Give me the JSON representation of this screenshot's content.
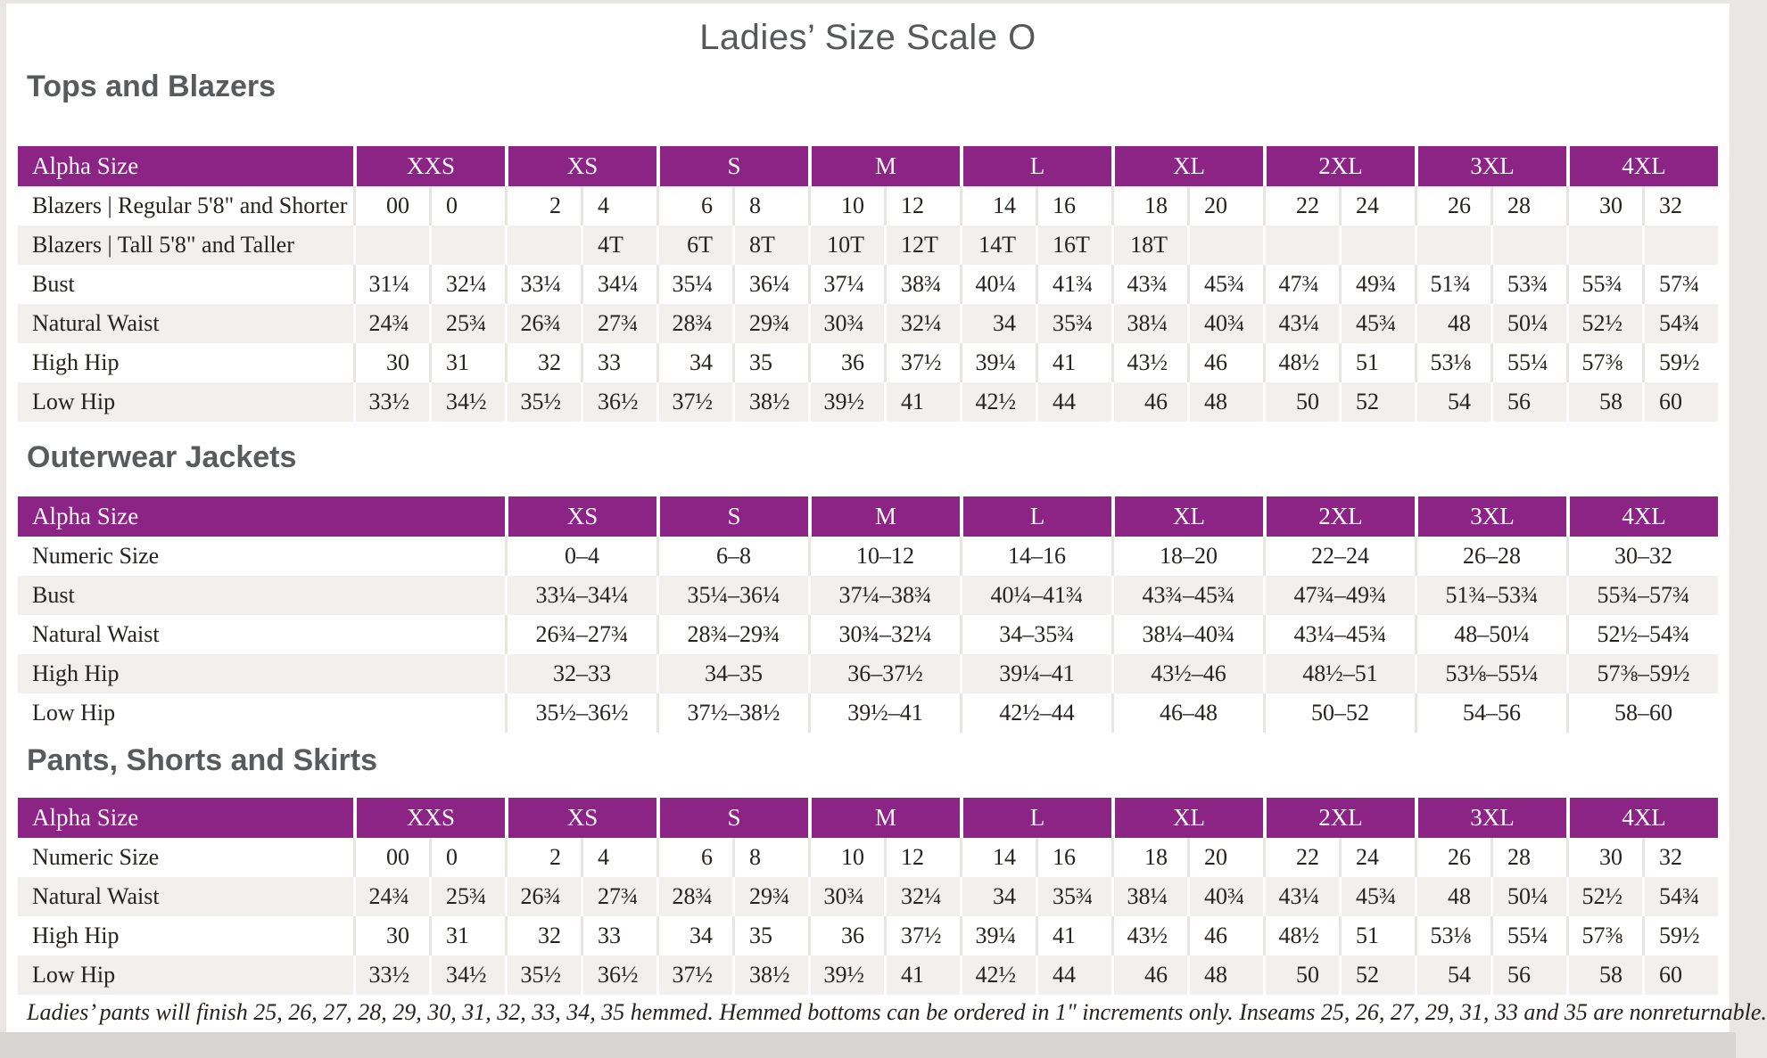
{
  "page": {
    "title": "Ladies’ Size Scale O"
  },
  "colors": {
    "header_purple": "#8c2486",
    "row_alt": "#f2f0ed",
    "heading_gray": "#595a5c",
    "text": "#262220"
  },
  "tables": [
    {
      "section_title": "Tops and Blazers",
      "layout": "paired",
      "header_label": "Alpha Size",
      "sizes": [
        "XXS",
        "XS",
        "S",
        "M",
        "L",
        "XL",
        "2XL",
        "3XL",
        "4XL"
      ],
      "rows": [
        {
          "label": "Blazers | Regular 5'8\" and Shorter",
          "values": [
            "00",
            "0",
            "2",
            "4",
            "6",
            "8",
            "10",
            "12",
            "14",
            "16",
            "18",
            "20",
            "22",
            "24",
            "26",
            "28",
            "30",
            "32"
          ]
        },
        {
          "label": "Blazers | Tall 5'8\" and Taller",
          "values": [
            "",
            "",
            "",
            "4T",
            "6T",
            "8T",
            "10T",
            "12T",
            "14T",
            "16T",
            "18T",
            "",
            "",
            "",
            "",
            "",
            "",
            ""
          ]
        },
        {
          "label": "Bust",
          "values": [
            "31¼",
            "32¼",
            "33¼",
            "34¼",
            "35¼",
            "36¼",
            "37¼",
            "38¾",
            "40¼",
            "41¾",
            "43¾",
            "45¾",
            "47¾",
            "49¾",
            "51¾",
            "53¾",
            "55¾",
            "57¾"
          ]
        },
        {
          "label": "Natural Waist",
          "values": [
            "24¾",
            "25¾",
            "26¾",
            "27¾",
            "28¾",
            "29¾",
            "30¾",
            "32¼",
            "34",
            "35¾",
            "38¼",
            "40¾",
            "43¼",
            "45¾",
            "48",
            "50¼",
            "52½",
            "54¾"
          ]
        },
        {
          "label": "High Hip",
          "values": [
            "30",
            "31",
            "32",
            "33",
            "34",
            "35",
            "36",
            "37½",
            "39¼",
            "41",
            "43½",
            "46",
            "48½",
            "51",
            "53⅛",
            "55¼",
            "57⅜",
            "59½"
          ]
        },
        {
          "label": "Low Hip",
          "values": [
            "33½",
            "34½",
            "35½",
            "36½",
            "37½",
            "38½",
            "39½",
            "41",
            "42½",
            "44",
            "46",
            "48",
            "50",
            "52",
            "54",
            "56",
            "58",
            "60"
          ]
        }
      ]
    },
    {
      "section_title": "Outerwear Jackets",
      "layout": "single",
      "header_label": "Alpha Size",
      "sizes": [
        "XS",
        "S",
        "M",
        "L",
        "XL",
        "2XL",
        "3XL",
        "4XL"
      ],
      "rows": [
        {
          "label": "Numeric Size",
          "values": [
            "0–4",
            "6–8",
            "10–12",
            "14–16",
            "18–20",
            "22–24",
            "26–28",
            "30–32"
          ]
        },
        {
          "label": "Bust",
          "values": [
            "33¼–34¼",
            "35¼–36¼",
            "37¼–38¾",
            "40¼–41¾",
            "43¾–45¾",
            "47¾–49¾",
            "51¾–53¾",
            "55¾–57¾"
          ]
        },
        {
          "label": "Natural Waist",
          "values": [
            "26¾–27¾",
            "28¾–29¾",
            "30¾–32¼",
            "34–35¾",
            "38¼–40¾",
            "43¼–45¾",
            "48–50¼",
            "52½–54¾"
          ]
        },
        {
          "label": "High Hip",
          "values": [
            "32–33",
            "34–35",
            "36–37½",
            "39¼–41",
            "43½–46",
            "48½–51",
            "53⅛–55¼",
            "57⅜–59½"
          ]
        },
        {
          "label": "Low Hip",
          "values": [
            "35½–36½",
            "37½–38½",
            "39½–41",
            "42½–44",
            "46–48",
            "50–52",
            "54–56",
            "58–60"
          ]
        }
      ]
    },
    {
      "section_title": "Pants, Shorts and Skirts",
      "layout": "paired",
      "header_label": "Alpha Size",
      "sizes": [
        "XXS",
        "XS",
        "S",
        "M",
        "L",
        "XL",
        "2XL",
        "3XL",
        "4XL"
      ],
      "rows": [
        {
          "label": "Numeric Size",
          "values": [
            "00",
            "0",
            "2",
            "4",
            "6",
            "8",
            "10",
            "12",
            "14",
            "16",
            "18",
            "20",
            "22",
            "24",
            "26",
            "28",
            "30",
            "32"
          ]
        },
        {
          "label": "Natural Waist",
          "values": [
            "24¾",
            "25¾",
            "26¾",
            "27¾",
            "28¾",
            "29¾",
            "30¾",
            "32¼",
            "34",
            "35¾",
            "38¼",
            "40¾",
            "43¼",
            "45¾",
            "48",
            "50¼",
            "52½",
            "54¾"
          ]
        },
        {
          "label": "High Hip",
          "values": [
            "30",
            "31",
            "32",
            "33",
            "34",
            "35",
            "36",
            "37½",
            "39¼",
            "41",
            "43½",
            "46",
            "48½",
            "51",
            "53⅛",
            "55¼",
            "57⅜",
            "59½"
          ]
        },
        {
          "label": "Low Hip",
          "values": [
            "33½",
            "34½",
            "35½",
            "36½",
            "37½",
            "38½",
            "39½",
            "41",
            "42½",
            "44",
            "46",
            "48",
            "50",
            "52",
            "54",
            "56",
            "58",
            "60"
          ]
        }
      ]
    }
  ],
  "footnote": "Ladies’ pants will finish 25, 26, 27, 28, 29, 30, 31, 32, 33, 34, 35 hemmed. Hemmed bottoms can be ordered in 1\" increments only. Inseams 25, 26, 27, 29, 31, 33 and 35 are nonreturnable."
}
